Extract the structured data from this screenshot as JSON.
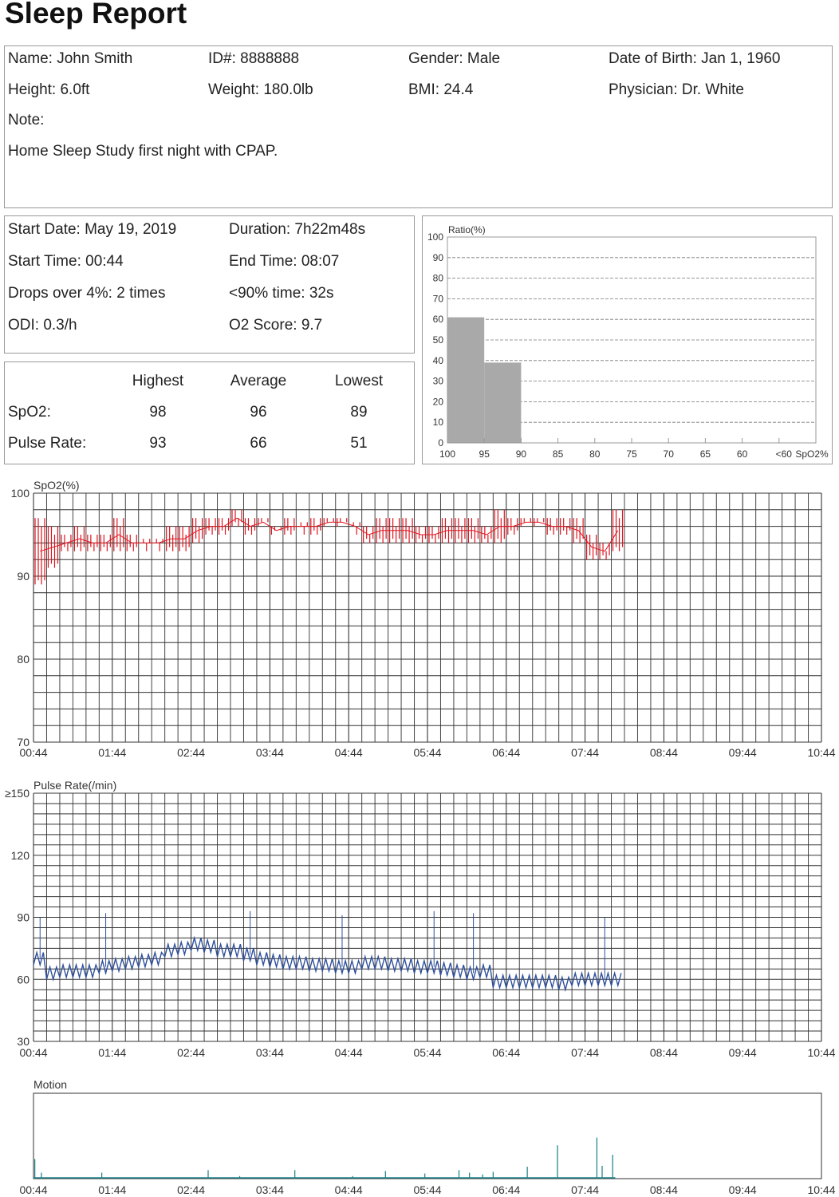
{
  "title": "Sleep Report",
  "patient": {
    "name": "Name: John Smith",
    "id": "ID#: 8888888",
    "gender": "Gender: Male",
    "dob": "Date of Birth: Jan 1, 1960",
    "height": "Height: 6.0ft",
    "weight": "Weight: 180.0lb",
    "bmi": "BMI: 24.4",
    "physician": "Physician: Dr. White",
    "note_label": "Note:",
    "note": "Home Sleep Study first night with CPAP."
  },
  "summary": {
    "start_date": "Start Date: May 19, 2019",
    "duration": "Duration: 7h22m48s",
    "start_time": "Start Time: 00:44",
    "end_time": "End Time: 08:07",
    "drops": "Drops over 4%: 2 times",
    "below90": "<90% time: 32s",
    "odi": "ODI: 0.3/h",
    "o2score": "O2 Score: 9.7"
  },
  "stats": {
    "headers": [
      "Highest",
      "Average",
      "Lowest"
    ],
    "rows": [
      {
        "label": "SpO2:",
        "values": [
          "98",
          "96",
          "89"
        ]
      },
      {
        "label": "Pulse Rate:",
        "values": [
          "93",
          "66",
          "51"
        ]
      }
    ]
  },
  "chart_data": [
    {
      "type": "bar",
      "ylabel": "Ratio(%)",
      "xlabel": "SpO2%",
      "ylim": [
        0,
        100
      ],
      "yticks": [
        "0",
        "10",
        "20",
        "30",
        "40",
        "50",
        "60",
        "70",
        "80",
        "90",
        "100"
      ],
      "xticks": [
        "100",
        "95",
        "90",
        "85",
        "80",
        "75",
        "70",
        "65",
        "60",
        "<60"
      ],
      "bins": [
        "100-95",
        "95-90",
        "90-85",
        "85-80",
        "80-75",
        "75-70",
        "70-65",
        "65-60",
        "60-<60",
        "<60"
      ],
      "values": [
        61,
        39,
        0,
        0,
        0,
        0,
        0,
        0,
        0,
        0
      ],
      "grid": "dashed horizontal",
      "color": "#a9a9a9"
    },
    {
      "type": "line",
      "ylabel": "SpO2(%)",
      "ylim": [
        70,
        100
      ],
      "yticks": [
        "100",
        "90",
        "80",
        "70"
      ],
      "xticks": [
        "00:44",
        "01:44",
        "02:44",
        "03:44",
        "04:44",
        "05:44",
        "06:44",
        "07:44",
        "08:44",
        "09:44",
        "10:44"
      ],
      "x_interval_min": 10,
      "color": "#e0141e",
      "low": [
        89,
        91,
        93,
        93,
        93,
        93,
        93,
        93,
        94,
        94,
        93,
        93,
        94,
        95,
        95,
        96,
        95,
        96,
        95,
        95,
        96,
        95,
        96,
        96,
        96,
        94,
        94,
        94,
        94,
        94,
        94,
        94,
        94,
        94,
        94,
        94,
        95,
        96,
        96,
        95,
        95,
        94,
        92,
        92,
        93
      ],
      "high": [
        97,
        96,
        95,
        96,
        95,
        95,
        97,
        95,
        94,
        94,
        96,
        96,
        97,
        97,
        97,
        98,
        97,
        97,
        96,
        97,
        96,
        97,
        97,
        97,
        96,
        96,
        97,
        97,
        97,
        96,
        96,
        97,
        97,
        97,
        96,
        98,
        97,
        97,
        97,
        97,
        97,
        97,
        95,
        94,
        98
      ]
    },
    {
      "type": "line",
      "ylabel": "Pulse Rate(/min)",
      "ylim": [
        30,
        150
      ],
      "yticks": [
        "≥150",
        "120",
        "90",
        "60",
        "30"
      ],
      "xticks": [
        "00:44",
        "01:44",
        "02:44",
        "03:44",
        "04:44",
        "05:44",
        "06:44",
        "07:44",
        "08:44",
        "09:44",
        "10:44"
      ],
      "x_interval_min": 10,
      "color": "#2e4f9c",
      "values": [
        70,
        63,
        64,
        64,
        64,
        66,
        67,
        68,
        69,
        70,
        74,
        75,
        77,
        76,
        74,
        74,
        72,
        70,
        69,
        68,
        68,
        67,
        67,
        66,
        66,
        68,
        68,
        67,
        67,
        66,
        66,
        65,
        64,
        63,
        64,
        59,
        59,
        59,
        59,
        59,
        58,
        60,
        60,
        60,
        60
      ],
      "spikes": [
        [
          0,
          90
        ],
        [
          5,
          92
        ],
        [
          16,
          93
        ],
        [
          23,
          91
        ],
        [
          30,
          93
        ],
        [
          33,
          92
        ],
        [
          43,
          90
        ]
      ]
    },
    {
      "type": "bar",
      "ylabel": "Motion",
      "xticks": [
        "00:44",
        "01:44",
        "02:44",
        "03:44",
        "04:44",
        "05:44",
        "06:44",
        "07:44",
        "08:44",
        "09:44",
        "10:44"
      ],
      "color": "#1a7f86",
      "events_min": [
        1,
        6,
        52,
        133,
        157,
        199,
        243,
        268,
        298,
        324,
        332,
        342,
        350,
        376,
        399,
        429,
        433,
        441
      ],
      "relative_level": [
        0.23,
        0.07,
        0.07,
        0.1,
        0.03,
        0.1,
        0.03,
        0.09,
        0.06,
        0.1,
        0.07,
        0.05,
        0.08,
        0.14,
        0.39,
        0.48,
        0.15,
        0.28
      ]
    }
  ]
}
